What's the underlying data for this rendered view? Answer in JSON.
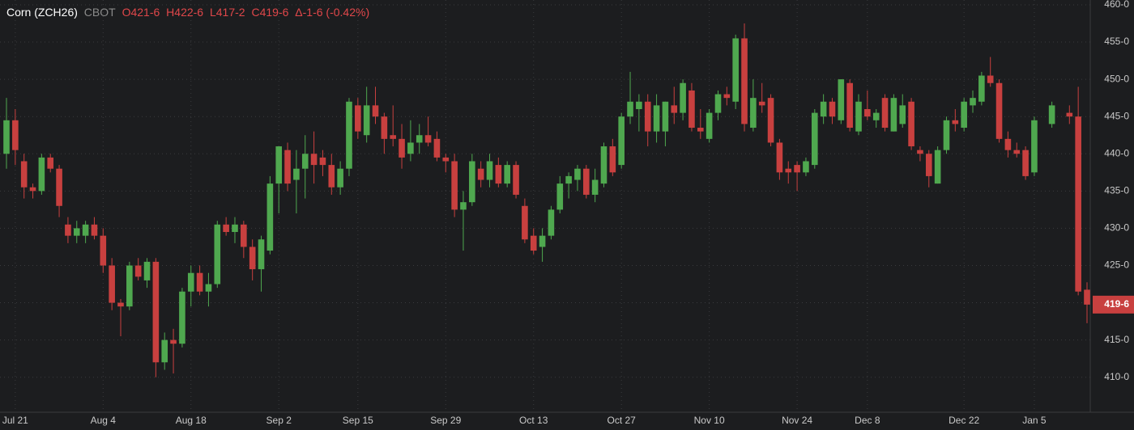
{
  "chart_data": {
    "type": "candlestick",
    "title": "Corn (ZCH26)",
    "exchange": "CBOT",
    "ohlc_labels": [
      "O421-6",
      "H422-6",
      "L417-2",
      "C419-6"
    ],
    "change_label": "Δ-1-6 (-0.42%)",
    "up_color": "#4fa84f",
    "down_color": "#c8403f",
    "grid": true,
    "ylim": [
      405.3,
      460.65
    ],
    "yticks": [
      {
        "value": 410,
        "label": "410-0"
      },
      {
        "value": 415,
        "label": "415-0"
      },
      {
        "value": 420,
        "label": "420-0"
      },
      {
        "value": 425,
        "label": "425-0"
      },
      {
        "value": 430,
        "label": "430-0"
      },
      {
        "value": 435,
        "label": "435-0"
      },
      {
        "value": 440,
        "label": "440-0"
      },
      {
        "value": 445,
        "label": "445-0"
      },
      {
        "value": 450,
        "label": "450-0"
      },
      {
        "value": 455,
        "label": "455-0"
      },
      {
        "value": 460,
        "label": "460-0"
      }
    ],
    "last_price": {
      "value": 419.75,
      "label": "419-6"
    },
    "categories": [
      null,
      "Jul 21",
      null,
      null,
      null,
      null,
      null,
      null,
      null,
      null,
      null,
      "Aug 4",
      null,
      null,
      null,
      null,
      null,
      null,
      null,
      null,
      null,
      "Aug 18",
      null,
      null,
      null,
      null,
      null,
      null,
      null,
      null,
      null,
      "Sep 2",
      null,
      null,
      null,
      null,
      null,
      null,
      null,
      null,
      "Sep 15",
      null,
      null,
      null,
      null,
      null,
      null,
      null,
      null,
      null,
      "Sep 29",
      null,
      null,
      null,
      null,
      null,
      null,
      null,
      null,
      null,
      "Oct 13",
      null,
      null,
      null,
      null,
      null,
      null,
      null,
      null,
      null,
      "Oct 27",
      null,
      null,
      null,
      null,
      null,
      null,
      null,
      null,
      null,
      "Nov 10",
      null,
      null,
      null,
      null,
      null,
      null,
      null,
      null,
      null,
      "Nov 24",
      null,
      null,
      null,
      null,
      null,
      null,
      null,
      "Dec 8",
      null,
      null,
      null,
      null,
      null,
      null,
      null,
      null,
      null,
      null,
      "Dec 22",
      null,
      null,
      null,
      null,
      null,
      null,
      null,
      "Jan 5",
      null,
      null,
      null,
      null,
      null,
      null
    ],
    "open": [
      440,
      444.5,
      439,
      435.5,
      435,
      439.5,
      438,
      430.5,
      429,
      429,
      430.5,
      429,
      425,
      420,
      419.5,
      425,
      423,
      425.5,
      412,
      415,
      414.5,
      421.5,
      424,
      421.5,
      422.5,
      430.5,
      429.5,
      430.5,
      427.5,
      424.5,
      427,
      436,
      440.5,
      436.5,
      438,
      440,
      439.5,
      438.5,
      435.5,
      438,
      446.5,
      442.5,
      446.5,
      445,
      442.5,
      442,
      440,
      441.5,
      442.5,
      442,
      439.5,
      439,
      432.5,
      433.5,
      438,
      436.5,
      438.5,
      436,
      438.5,
      433,
      429,
      427.5,
      429,
      432.5,
      436,
      436.5,
      438,
      434.5,
      436,
      441,
      438.5,
      445,
      446,
      447,
      443,
      443,
      446.5,
      445.5,
      448.5,
      443.5,
      442,
      445.5,
      448,
      447,
      455.5,
      443.5,
      447,
      447.5,
      441.5,
      438,
      438.5,
      437.5,
      438.5,
      445,
      447,
      444.5,
      449.5,
      443,
      446,
      444.5,
      447.5,
      443,
      444,
      447,
      440.5,
      440,
      436,
      440.5,
      444.5,
      443.5,
      446.5,
      447,
      450.5,
      449.5,
      442,
      440.5,
      440.5,
      437.5,
      null,
      444,
      null,
      445.5,
      445,
      421.75
    ],
    "high": [
      447.5,
      446,
      440,
      436,
      440,
      440,
      438.5,
      431.5,
      431,
      431,
      431.5,
      430,
      426,
      420.5,
      425.5,
      426,
      426,
      426,
      416,
      416.5,
      422,
      425,
      425,
      424,
      431,
      431.5,
      431.5,
      431,
      428.5,
      429,
      437,
      441,
      441.5,
      440.5,
      442.5,
      443,
      440.5,
      440,
      439,
      447.5,
      447.5,
      449,
      449,
      445.5,
      446.5,
      444,
      444.5,
      444,
      445,
      443,
      440,
      440,
      435,
      440,
      439,
      440,
      439.5,
      439,
      439,
      434,
      430,
      430,
      433,
      437,
      437.5,
      438.5,
      438.5,
      438,
      441.5,
      442,
      445.5,
      451,
      448,
      448,
      448,
      447,
      449,
      450,
      449.5,
      446,
      446,
      448.5,
      449,
      456,
      457.5,
      450,
      449.5,
      448,
      442,
      439,
      439,
      439.5,
      446,
      448,
      447.5,
      450,
      450,
      448,
      448.5,
      446,
      448,
      448,
      448,
      447.5,
      441,
      440.5,
      441,
      445,
      446,
      447.5,
      448.5,
      451,
      453,
      450,
      443,
      441.5,
      441,
      445,
      null,
      447,
      null,
      446.5,
      449,
      422.75
    ],
    "low": [
      438,
      438.5,
      434,
      434,
      434.5,
      437.5,
      431.5,
      428,
      428,
      428,
      428.5,
      424,
      419,
      415.5,
      419,
      423,
      422,
      410,
      411,
      410.5,
      414,
      419.5,
      421,
      419.5,
      422,
      429,
      428,
      426,
      423,
      421.5,
      426.5,
      432,
      435,
      432,
      434,
      436,
      437,
      434.5,
      434.5,
      437,
      442,
      441.5,
      444,
      440,
      441,
      438,
      439,
      440,
      441,
      439,
      437.5,
      431.5,
      427,
      433,
      435.5,
      435.5,
      435.5,
      435.5,
      434,
      428,
      426.5,
      425.5,
      428.5,
      432,
      434,
      435,
      434,
      433.5,
      435.5,
      437,
      438,
      444,
      443,
      441,
      441.5,
      441,
      444,
      444.5,
      443,
      442,
      441.5,
      444.5,
      446.5,
      446,
      443,
      443,
      445.5,
      441,
      436.5,
      436,
      435,
      437,
      438,
      444,
      444,
      444,
      443,
      442.5,
      444.5,
      443.5,
      443,
      443,
      443.5,
      440.5,
      439,
      435.5,
      436,
      440,
      443,
      443,
      445.5,
      446.5,
      449,
      441.5,
      439.5,
      439.5,
      436.5,
      437,
      null,
      443.5,
      null,
      444,
      421,
      417.25
    ],
    "close": [
      444.5,
      440.5,
      435.5,
      435,
      439.5,
      438,
      433,
      429,
      430,
      430.5,
      429,
      425,
      420,
      419.5,
      425,
      423.5,
      425.5,
      412,
      415,
      414.5,
      421.5,
      424,
      421.5,
      422.5,
      430.5,
      429.5,
      430.5,
      427.5,
      424.5,
      428.5,
      436,
      441,
      436,
      438,
      440,
      438.5,
      438.5,
      435.5,
      438,
      447,
      443,
      446.5,
      445,
      442,
      442,
      439.5,
      441.5,
      442.5,
      441.5,
      439.5,
      439,
      432.5,
      433.5,
      439,
      436.5,
      439,
      436,
      438.5,
      434.5,
      428.5,
      427,
      429,
      432.5,
      436,
      437,
      438,
      434.5,
      436.5,
      441,
      437.5,
      445,
      447,
      447,
      443,
      446.5,
      447,
      445.5,
      449.5,
      443.5,
      443,
      445.5,
      448,
      447.5,
      455.5,
      444,
      447.5,
      446.5,
      441.5,
      437.5,
      437.5,
      437.5,
      439,
      445.5,
      447,
      445,
      450,
      443.5,
      447,
      445,
      445.5,
      443.5,
      447.5,
      446.5,
      441,
      440,
      437,
      440.5,
      444.5,
      444,
      447,
      447.5,
      450.5,
      449.5,
      442,
      440.5,
      440,
      437,
      444.5,
      null,
      446.5,
      null,
      445,
      421.5,
      419.75
    ]
  }
}
